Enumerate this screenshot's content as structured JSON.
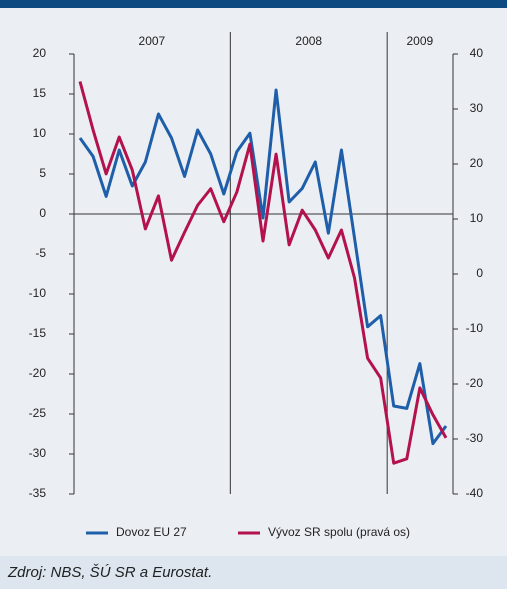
{
  "chart_data": {
    "type": "line",
    "categories": [
      null,
      null,
      null,
      null,
      null,
      null,
      null,
      null,
      null,
      null,
      null,
      null,
      null,
      null,
      null,
      null,
      null,
      null,
      null,
      null,
      null,
      null,
      null,
      null,
      null,
      null,
      null,
      null,
      null
    ],
    "x_groups": [
      {
        "label": "2007",
        "count": 12
      },
      {
        "label": "2008",
        "count": 12
      },
      {
        "label": "2009",
        "count": 5
      }
    ],
    "series": [
      {
        "name": "Dovoz EU 27",
        "color": "#1f5ea8",
        "values": [
          9.5,
          7.2,
          2.2,
          8,
          3.5,
          6.5,
          12.5,
          9.5,
          4.7,
          10.5,
          7.5,
          2.5,
          7.8,
          10.1,
          -0.5,
          15.5,
          1.5,
          3.2,
          6.5,
          -2.4,
          8,
          -3,
          -14.1,
          -12.7,
          -24,
          -24.3,
          -18.7,
          -28.7,
          -26.5
        ]
      },
      {
        "name": "Vývoz SR spolu (pravá os)",
        "color": "#b3124d",
        "axis": "y2",
        "values": [
          35,
          26.2,
          18.2,
          24.9,
          18.9,
          8.2,
          14.2,
          2.5,
          7.6,
          12.5,
          15.5,
          9.5,
          14.9,
          23.6,
          6,
          21.8,
          5.3,
          11.6,
          8,
          2.9,
          8,
          -0.7,
          -15.3,
          -18.9,
          -34.4,
          -33.6,
          -20.7,
          -25.6,
          -29.8
        ]
      }
    ],
    "ylim": [
      -35,
      20
    ],
    "yticks": [
      -35,
      -30,
      -25,
      -20,
      -15,
      -10,
      -5,
      0,
      5,
      10,
      15,
      20
    ],
    "y2lim": [
      -40,
      40
    ],
    "y2ticks": [
      -40,
      -30,
      -20,
      -10,
      0,
      10,
      20,
      30,
      40
    ],
    "legend": "bottom",
    "source": "Zdroj: NBS, ŠÚ SR a Eurostat."
  }
}
